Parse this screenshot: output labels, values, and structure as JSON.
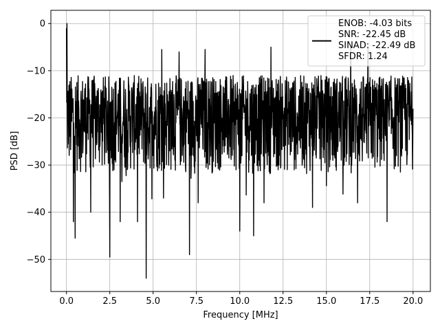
{
  "chart_data": {
    "type": "line",
    "xlabel": "Frequency [MHz]",
    "ylabel": "PSD [dB]",
    "xlim": [
      -0.9,
      21.0
    ],
    "ylim": [
      -56.8,
      2.8
    ],
    "xticks": [
      0.0,
      2.5,
      5.0,
      7.5,
      10.0,
      12.5,
      15.0,
      17.5,
      20.0
    ],
    "xtick_labels": [
      "0.0",
      "2.5",
      "5.0",
      "7.5",
      "10.0",
      "12.5",
      "15.0",
      "17.5",
      "20.0"
    ],
    "yticks": [
      0,
      -10,
      -20,
      -30,
      -40,
      -50
    ],
    "ytick_labels": [
      "0",
      "−10",
      "−20",
      "−30",
      "−40",
      "−50"
    ],
    "grid": true,
    "legend_position": "top-right",
    "legend_entries": [
      "ENOB: -4.03 bits",
      "SNR: -22.45 dB",
      "SINAD: -22.49 dB",
      "SFDR: 1.24"
    ],
    "series_color": "#000000",
    "series": [
      {
        "x_range": [
          0.0,
          20.0
        ],
        "envelope_upper": -11,
        "envelope_lower": -32,
        "start_value": -1.0,
        "notable_dips": [
          {
            "x": 0.4,
            "y": -42
          },
          {
            "x": 0.5,
            "y": -45.5
          },
          {
            "x": 1.4,
            "y": -40
          },
          {
            "x": 2.5,
            "y": -49.5
          },
          {
            "x": 3.1,
            "y": -42
          },
          {
            "x": 4.1,
            "y": -42
          },
          {
            "x": 4.6,
            "y": -54
          },
          {
            "x": 5.6,
            "y": -37
          },
          {
            "x": 7.1,
            "y": -49
          },
          {
            "x": 7.6,
            "y": -38
          },
          {
            "x": 10.0,
            "y": -44
          },
          {
            "x": 10.8,
            "y": -45
          },
          {
            "x": 11.4,
            "y": -38
          },
          {
            "x": 14.2,
            "y": -39
          },
          {
            "x": 16.8,
            "y": -38
          },
          {
            "x": 18.5,
            "y": -42
          }
        ],
        "notable_peaks": [
          {
            "x": 0.03,
            "y": 0
          },
          {
            "x": 5.5,
            "y": -5.5
          },
          {
            "x": 6.5,
            "y": -6.0
          },
          {
            "x": 8.0,
            "y": -5.5
          },
          {
            "x": 11.8,
            "y": -5.0
          },
          {
            "x": 16.4,
            "y": -5.0
          },
          {
            "x": 17.4,
            "y": -5.0
          }
        ]
      }
    ]
  }
}
